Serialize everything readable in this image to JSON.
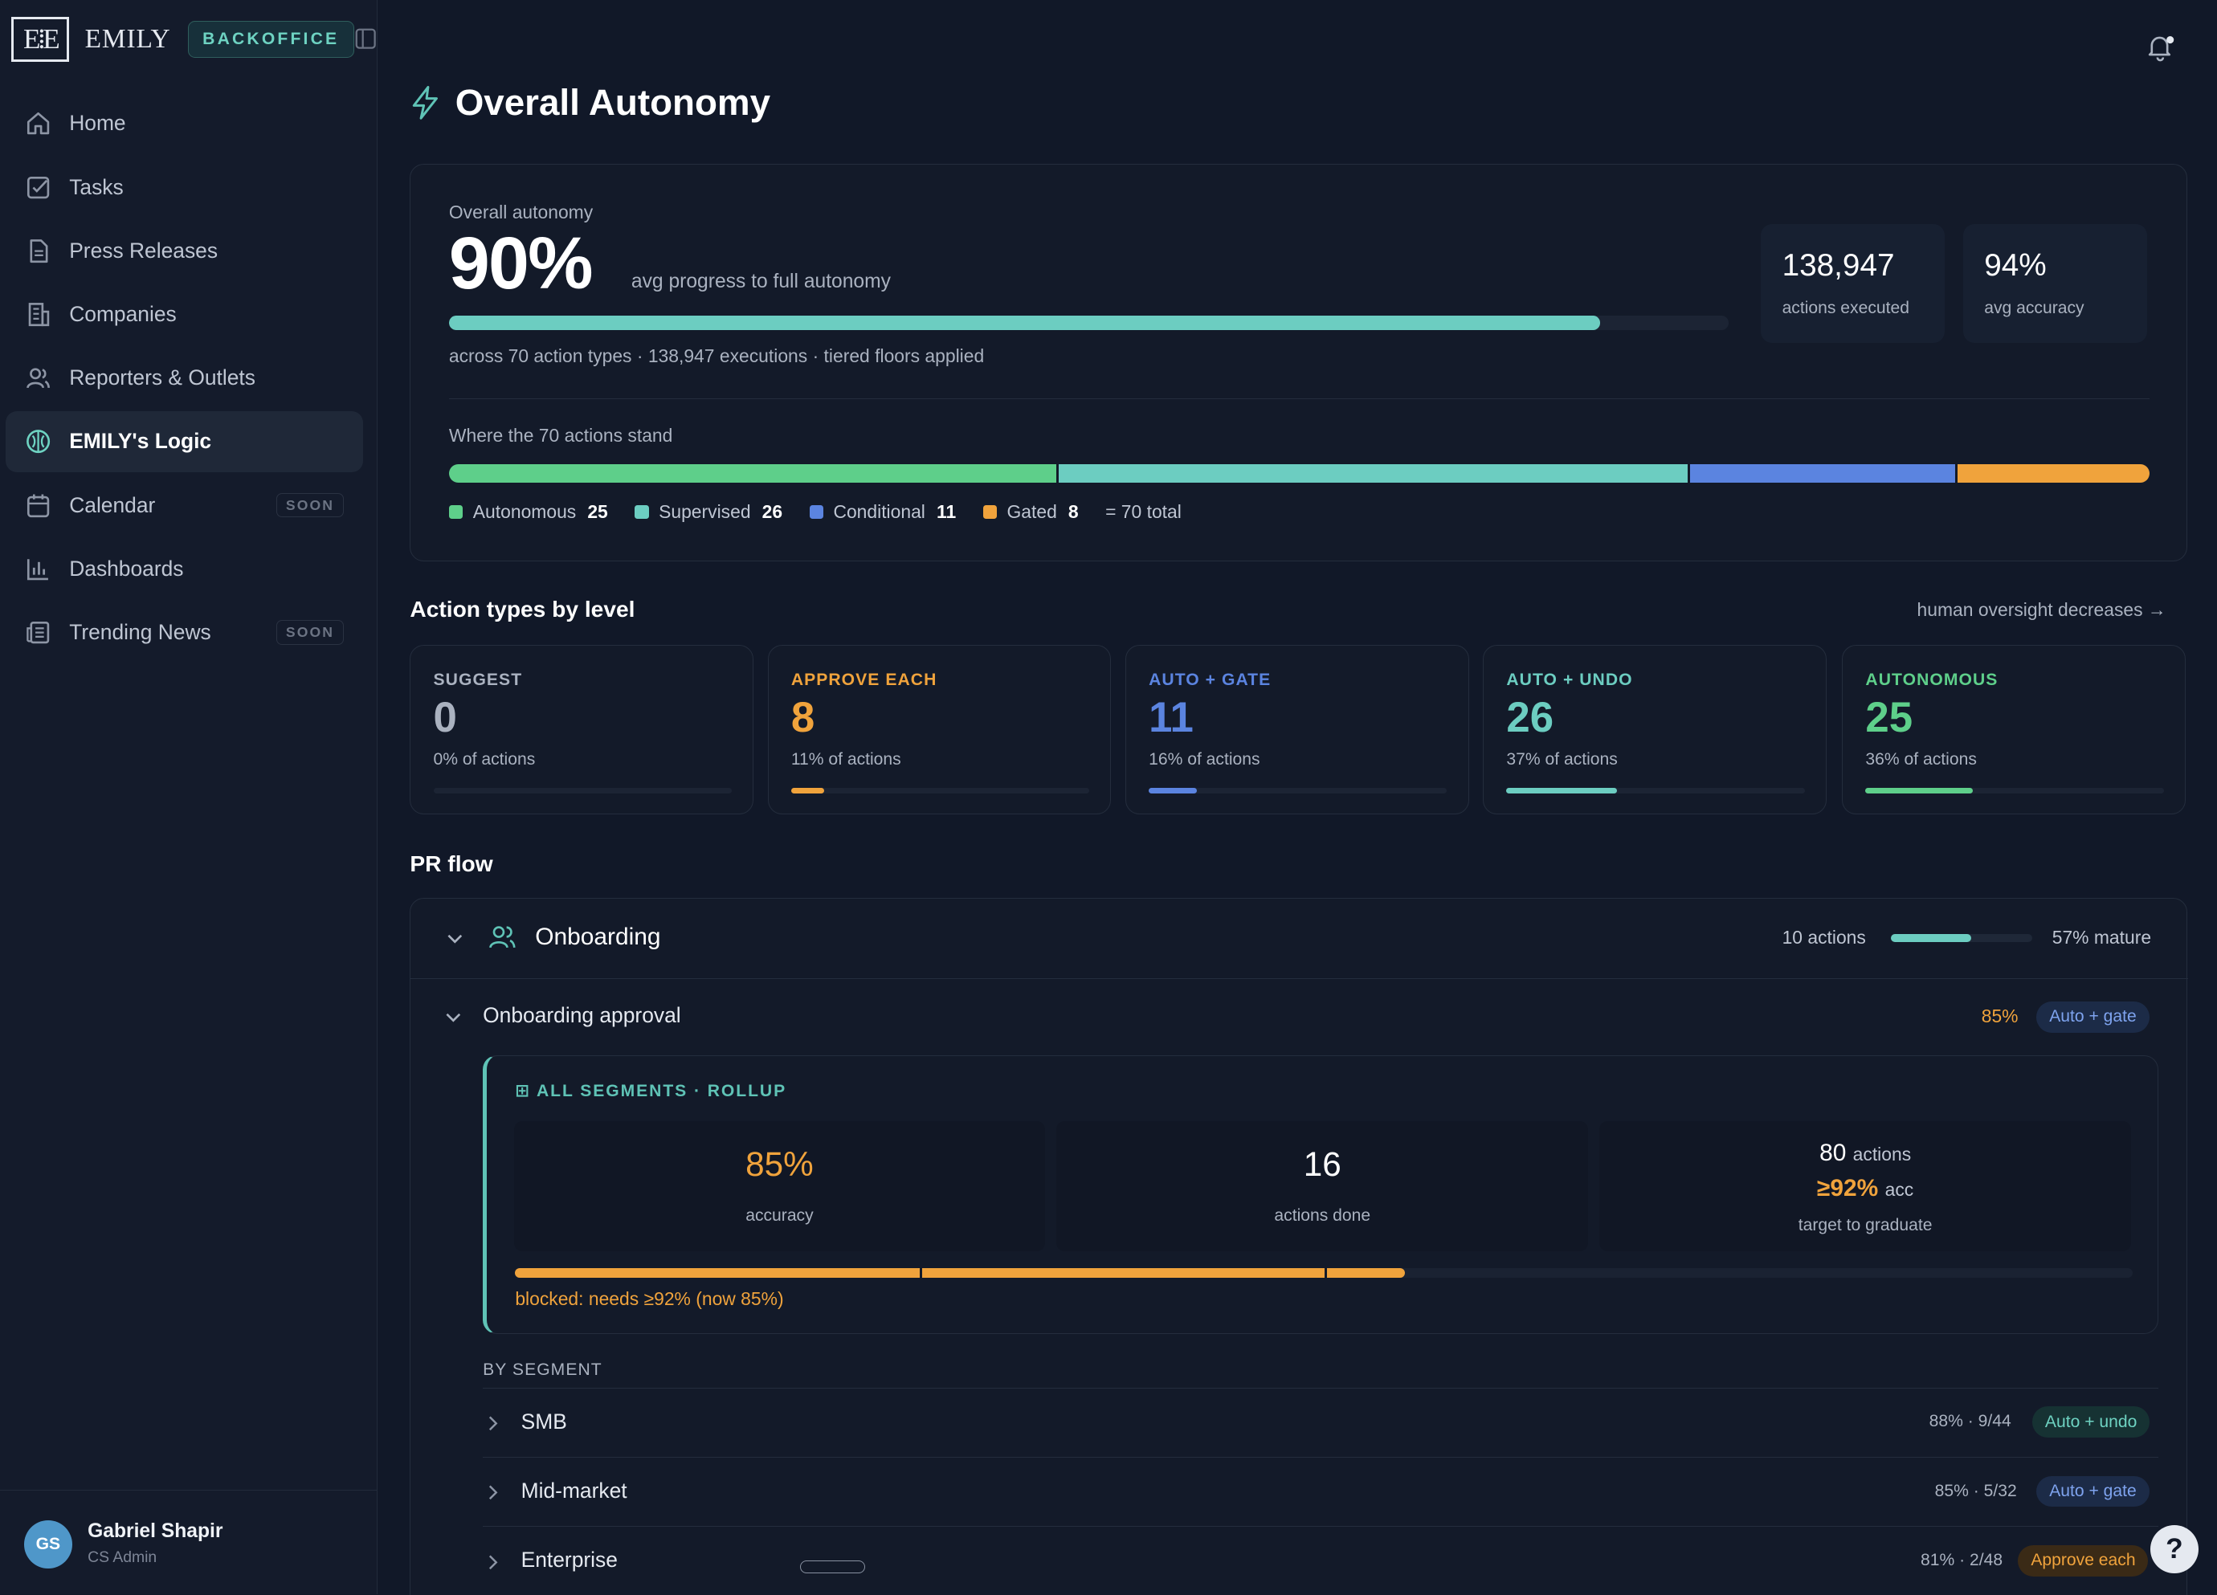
{
  "brand": {
    "name": "EMILY",
    "badge": "BACKOFFICE",
    "logo": "E·E"
  },
  "nav": [
    {
      "label": "Home",
      "icon": "home-icon"
    },
    {
      "label": "Tasks",
      "icon": "checkbox-icon"
    },
    {
      "label": "Press Releases",
      "icon": "document-icon"
    },
    {
      "label": "Companies",
      "icon": "building-icon"
    },
    {
      "label": "Reporters & Outlets",
      "icon": "users-icon"
    },
    {
      "label": "EMILY's Logic",
      "icon": "brain-icon",
      "active": true
    },
    {
      "label": "Calendar",
      "icon": "calendar-icon",
      "soon": "SOON"
    },
    {
      "label": "Dashboards",
      "icon": "bar-chart-icon"
    },
    {
      "label": "Trending News",
      "icon": "newspaper-icon",
      "soon": "SOON"
    }
  ],
  "user": {
    "initials": "GS",
    "name": "Gabriel Shapir",
    "role": "CS Admin"
  },
  "page": {
    "title": "Overall Autonomy"
  },
  "hero": {
    "label": "Overall autonomy",
    "value": "90%",
    "value_sub": "avg progress to full autonomy",
    "progress": 0.9,
    "meta": "across 70 action types · 138,947 executions · tiered floors applied",
    "stats": [
      {
        "value": "138,947",
        "label": "actions executed"
      },
      {
        "value": "94%",
        "label": "avg accuracy"
      }
    ],
    "where_label": "Where the 70 actions stand",
    "segments": [
      {
        "name": "Autonomous",
        "count": "25",
        "color": "#5ecf8a"
      },
      {
        "name": "Supervised",
        "count": "26",
        "color": "#6ccdc1"
      },
      {
        "name": "Conditional",
        "count": "11",
        "color": "#5b84e0"
      },
      {
        "name": "Gated",
        "count": "8",
        "color": "#f0a33c"
      }
    ],
    "total": "= 70 total"
  },
  "levels": {
    "title": "Action types by level",
    "hint": "human oversight decreases →",
    "items": [
      {
        "title": "SUGGEST",
        "count": "0",
        "pct": "0% of actions",
        "fraction": 0,
        "color": "#aab2c0"
      },
      {
        "title": "APPROVE EACH",
        "count": "8",
        "pct": "11% of actions",
        "fraction": 0.11,
        "color": "#f0a33c"
      },
      {
        "title": "AUTO + GATE",
        "count": "11",
        "pct": "16% of actions",
        "fraction": 0.16,
        "color": "#5b84e0"
      },
      {
        "title": "AUTO + UNDO",
        "count": "26",
        "pct": "37% of actions",
        "fraction": 0.37,
        "color": "#6ccdc1"
      },
      {
        "title": "AUTONOMOUS",
        "count": "25",
        "pct": "36% of actions",
        "fraction": 0.36,
        "color": "#5ecf8a"
      }
    ]
  },
  "flow": {
    "title": "PR flow",
    "group": {
      "name": "Onboarding",
      "count": "10 actions",
      "maturity": 0.57,
      "maturity_label": "57% mature"
    },
    "action": {
      "name": "Onboarding approval",
      "pct": "85%",
      "badge": "Auto + gate"
    },
    "rollup": {
      "title": "⊞ ALL SEGMENTS · ROLLUP",
      "accuracy": "85%",
      "accuracy_label": "accuracy",
      "done": "16",
      "done_label": "actions done",
      "target_actions": "80",
      "target_actions_unit": "actions",
      "target_acc": "≥92%",
      "target_acc_unit": "acc",
      "target_label": "target to graduate",
      "progress": 0.55,
      "blocked": "blocked: needs ≥92% (now 85%)"
    },
    "by_segment": "BY SEGMENT",
    "segments": [
      {
        "name": "SMB",
        "stats": "88% · 9/44",
        "badge": "Auto + undo",
        "kind": "teal"
      },
      {
        "name": "Mid-market",
        "stats": "85% · 5/32",
        "badge": "Auto + gate",
        "kind": "blue"
      },
      {
        "name": "Enterprise",
        "stats": "81% · 2/48",
        "badge": "Approve each",
        "kind": "orange"
      }
    ]
  },
  "help": "?"
}
